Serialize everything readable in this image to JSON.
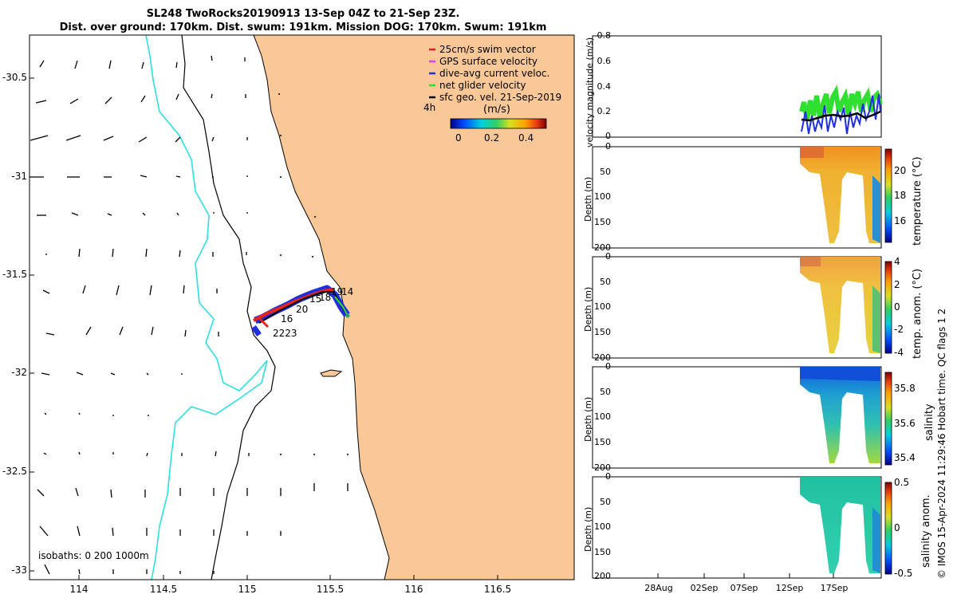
{
  "title": {
    "line1": "SL248 TwoRocks20190913 13-Sep 04Z to 21-Sep 23Z.",
    "line2": "Dist. over ground: 170km. Dist. swum: 191km. Mission DOG: 170km. Swum: 191km"
  },
  "map": {
    "lat_ticks": [
      "-30.5",
      "-31",
      "-31.5",
      "-32",
      "-32.5",
      "-33"
    ],
    "lon_ticks": [
      "114",
      "114.5",
      "115",
      "115.5",
      "116",
      "116.5"
    ],
    "isobaths_label": "isobaths: 0   200  1000m",
    "day_labels": [
      "19",
      "14",
      "15",
      "18",
      "20",
      "16",
      "2223"
    ],
    "time_scale_label": "4h",
    "land_color": "#f9c896",
    "track_color": "#000000"
  },
  "legend": {
    "items": [
      {
        "label": "25cm/s swim vector",
        "color": "#e8241a"
      },
      {
        "label": "GPS surface velocity",
        "color": "#e040e0"
      },
      {
        "label": "dive-avg current veloc.",
        "color": "#2030e0"
      },
      {
        "label": "net glider velocity",
        "color": "#30e030"
      },
      {
        "label": "sfc geo. vel. 21-Sep-2019",
        "color": "#000000"
      }
    ]
  },
  "speed_colorbar": {
    "label": "(m/s)",
    "ticks": [
      "0",
      "0.2",
      "0.4"
    ]
  },
  "velocity_panel": {
    "ylabel": "velocity magnitude (m/s)",
    "yticks": [
      "0.8",
      "0.6",
      "0.4",
      "0.2",
      "0"
    ]
  },
  "depth_panels": [
    {
      "name": "temperature",
      "cblabel": "temperature (°C)",
      "cbticks": [
        "20",
        "18",
        "16"
      ],
      "ylabel": "Depth (m)",
      "yticks": [
        "0",
        "50",
        "100",
        "150",
        "200"
      ]
    },
    {
      "name": "temp-anom",
      "cblabel": "temp. anom. (°C)",
      "cbticks": [
        "4",
        "2",
        "0",
        "-2",
        "-4"
      ],
      "ylabel": "Depth (m)",
      "yticks": [
        "0",
        "50",
        "100",
        "150",
        "200"
      ]
    },
    {
      "name": "salinity",
      "cblabel": "salinity",
      "cbticks": [
        "35.8",
        "35.6",
        "35.4"
      ],
      "ylabel": "Depth (m)",
      "yticks": [
        "0",
        "50",
        "100",
        "150",
        "200"
      ]
    },
    {
      "name": "salinity-anom",
      "cblabel": "salinity anom.",
      "cbticks": [
        "0.5",
        "0",
        "-0.5"
      ],
      "ylabel": "Depth (m)",
      "yticks": [
        "0",
        "50",
        "100",
        "150",
        "200"
      ]
    }
  ],
  "time_axis": {
    "ticks": [
      "28Aug",
      "02Sep",
      "07Sep",
      "12Sep",
      "17Sep"
    ]
  },
  "footer": {
    "credit": "© IMOS 15-Apr-2024 11:29:46 Hobart time. QC flags 1  2"
  }
}
